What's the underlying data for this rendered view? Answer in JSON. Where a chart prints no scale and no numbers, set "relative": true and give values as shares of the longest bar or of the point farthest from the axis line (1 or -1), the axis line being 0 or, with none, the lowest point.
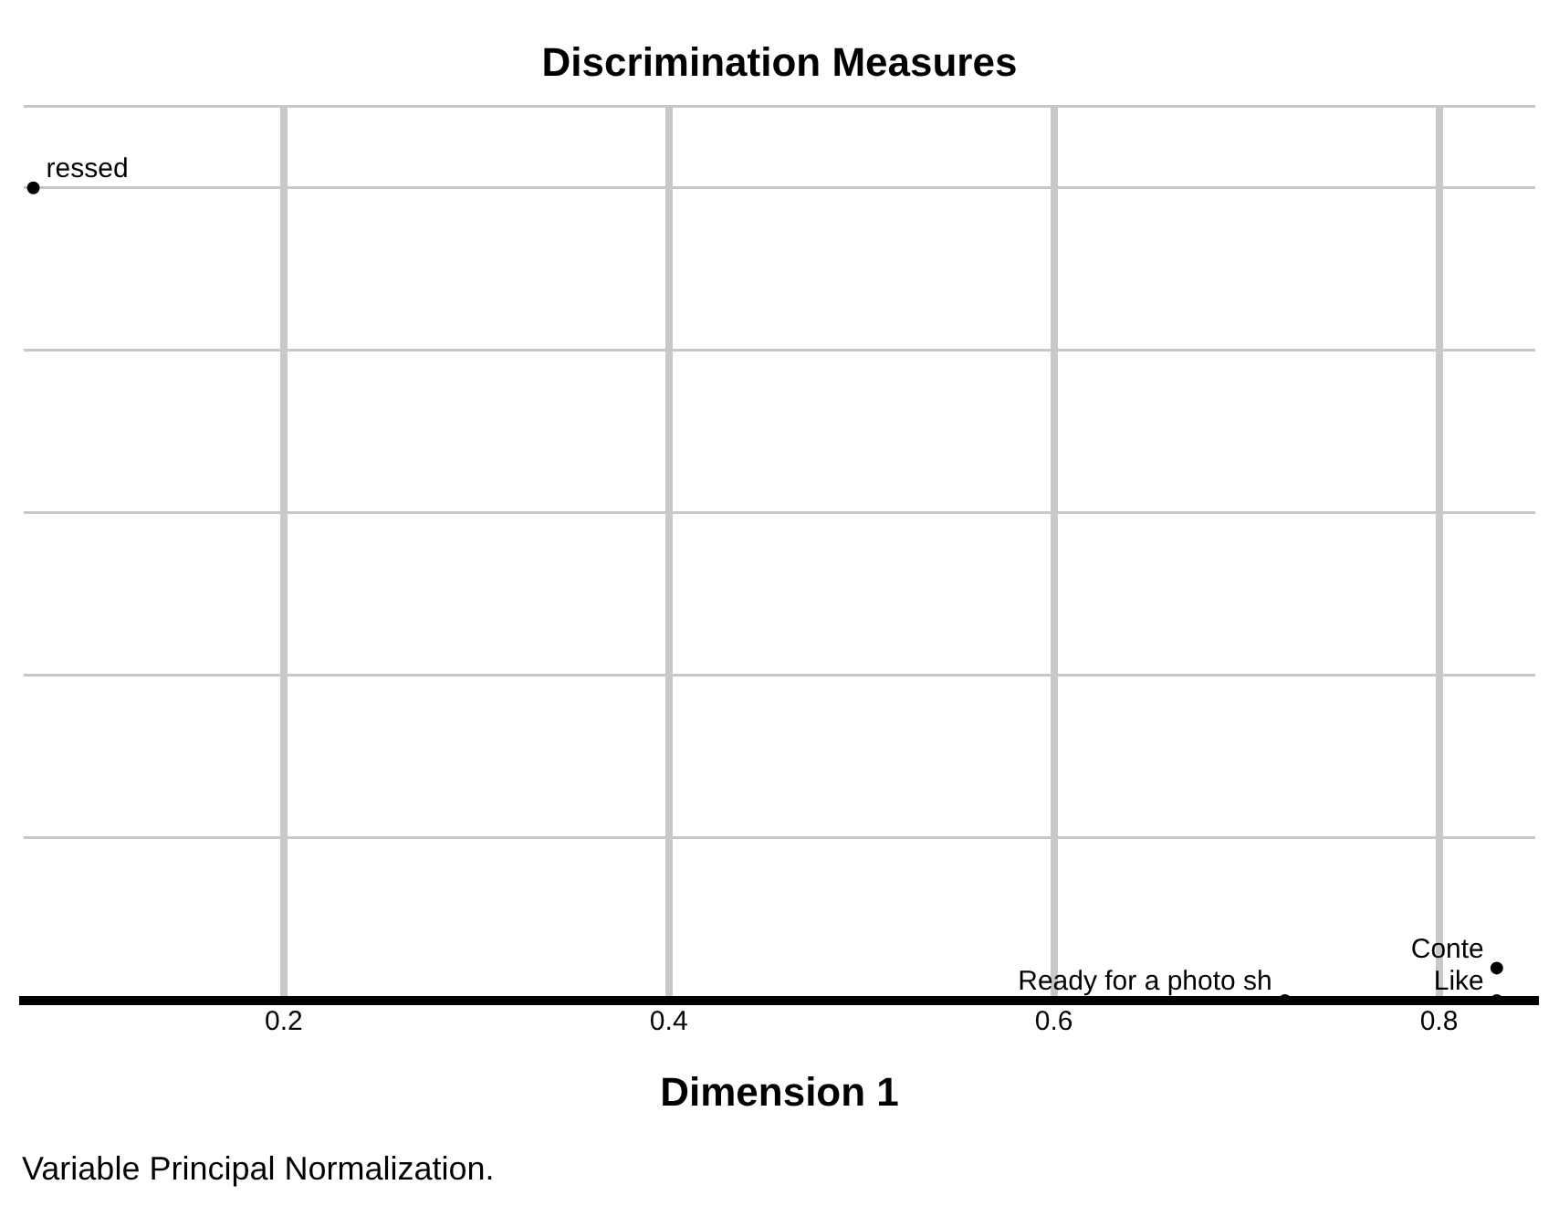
{
  "chart_data": {
    "type": "scatter",
    "title": "Discrimination Measures",
    "xlabel": "Dimension 1",
    "relative": true,
    "xlim": [
      0.065,
      0.85
    ],
    "xticks": [
      0.2,
      0.4,
      0.6,
      0.8
    ],
    "series": [
      {
        "color": "#000000",
        "x": [
          0.07,
          0.72,
          0.83,
          0.83
        ],
        "values": [
          1,
          0,
          0.04,
          0
        ]
      }
    ],
    "annotations": [
      {
        "text": "ressed",
        "x": 0.07,
        "y": 1
      },
      {
        "text": "Ready for a photo sh",
        "x": 0.72,
        "y": 0
      },
      {
        "text": "Conte",
        "x": 0.83,
        "y": 0.04
      },
      {
        "text": "Like",
        "x": 0.83,
        "y": 0
      },
      "Variable Principal Normalization."
    ],
    "grid": true,
    "marker": "circle",
    "legend": false
  }
}
